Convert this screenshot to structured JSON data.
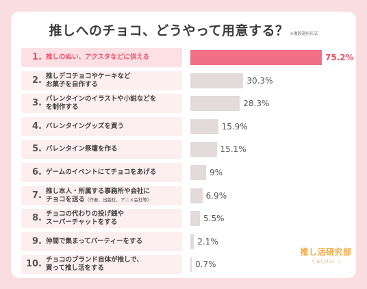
{
  "title": "推しへのチョコ、どうやって用意する？",
  "title_note": "※複数選択形式",
  "logo": {
    "main": "推し活研究部",
    "sub": "う おしけん！ ♪"
  },
  "chart_data": {
    "type": "bar",
    "orientation": "horizontal",
    "xlim": [
      0,
      100
    ],
    "unit": "%",
    "categories": [
      {
        "rank": "1.",
        "lines": [
          "推しのぬい、アクスタなどに供える"
        ],
        "small": ""
      },
      {
        "rank": "2.",
        "lines": [
          "推しデコチョコやケーキなど",
          "お菓子を自作する"
        ],
        "small": ""
      },
      {
        "rank": "3.",
        "lines": [
          "バレンタインのイラストや小説などを",
          "を制作する"
        ],
        "small": ""
      },
      {
        "rank": "4.",
        "lines": [
          "バレンタイングッズを買う"
        ],
        "small": ""
      },
      {
        "rank": "5.",
        "lines": [
          "バレンタイン祭壇を作る"
        ],
        "small": ""
      },
      {
        "rank": "6.",
        "lines": [
          "ゲームのイベントにてチョコをあげる"
        ],
        "small": ""
      },
      {
        "rank": "7.",
        "lines": [
          "推し本人・所属する事務所や会社に",
          "チョコを送る"
        ],
        "small": "（作者、出版社、アニメ会社等）"
      },
      {
        "rank": "8.",
        "lines": [
          "チョコの代わりの投げ銭や",
          "スーパーチャットをする"
        ],
        "small": ""
      },
      {
        "rank": "9.",
        "lines": [
          "仲間で集まってパーティーをする"
        ],
        "small": ""
      },
      {
        "rank": "10.",
        "lines": [
          "チョコのブランド自体が推しで、",
          "買って推し活をする"
        ],
        "small": ""
      }
    ],
    "values": [
      75.2,
      30.3,
      28.3,
      15.9,
      15.1,
      9,
      6.9,
      5.5,
      2.1,
      0.7
    ],
    "value_labels": [
      "75.2%",
      "30.3%",
      "28.3%",
      "15.9%",
      "15.1%",
      "9%",
      "6.9%",
      "5.5%",
      "2.1%",
      "0.7%"
    ],
    "colors": {
      "highlight": "#f17086",
      "bar": "#e2dadb",
      "label_bg": "#fdeef0",
      "highlight_text": "#e8506a"
    }
  }
}
